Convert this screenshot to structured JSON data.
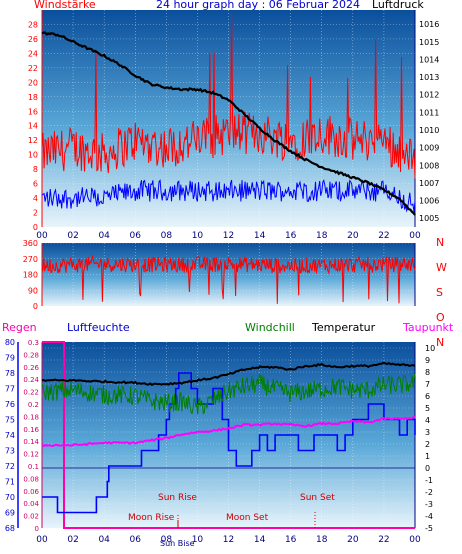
{
  "header": {
    "left_label": "Windstärke",
    "title": "24 hour graph day : 06 Februar 2024",
    "right_label": "Luftdruck"
  },
  "lower_header": {
    "regen": "Regen",
    "luftfeuchte": "Luftfeuchte",
    "windchill": "Windchill",
    "temperatur": "Temperatur",
    "taupunkt": "Taupunkt"
  },
  "annotations": {
    "sun_rise": "Sun Rise",
    "sun_set": "Sun Set",
    "moon_rise": "Moon Rise",
    "moon_set": "Moon Set",
    "sun_rise_marker": "Sun Bise"
  },
  "colors": {
    "wind_gust": "#ff0000",
    "wind_avg": "#0000ff",
    "pressure": "#000000",
    "direction": "#ff0000",
    "humidity": "#0000ff",
    "windchill": "#008000",
    "temperature": "#000000",
    "dewpoint": "#ff00ff",
    "rain": "#ff00aa",
    "left_axis": "#ff0000",
    "right_axis": "#000080",
    "header_blue": "#0000cc"
  },
  "chart_data": [
    {
      "type": "line",
      "title": "24 hour graph day : 06 Februar 2024",
      "x_ticks": [
        "00",
        "02",
        "04",
        "06",
        "08",
        "10",
        "12",
        "14",
        "16",
        "18",
        "20",
        "22",
        "00"
      ],
      "x_range_hours": [
        0,
        24
      ],
      "left_axis": {
        "label": "Windstärke",
        "ticks": [
          0,
          2,
          4,
          6,
          8,
          10,
          12,
          14,
          16,
          18,
          20,
          22,
          24,
          26,
          28
        ],
        "range": [
          0,
          30
        ]
      },
      "right_axis": {
        "label": "Luftdruck",
        "ticks": [
          1005,
          1006,
          1007,
          1008,
          1009,
          1010,
          1011,
          1012,
          1013,
          1014,
          1015,
          1016
        ],
        "range": [
          1004.5,
          1016.8
        ]
      },
      "series": [
        {
          "name": "Luftdruck",
          "axis": "right",
          "x": [
            0,
            1,
            2,
            3,
            4,
            5,
            6,
            7,
            8,
            9,
            10,
            11,
            12,
            13,
            14,
            15,
            16,
            17,
            18,
            19,
            20,
            21,
            22,
            23,
            24
          ],
          "values": [
            1015.5,
            1015.4,
            1015.0,
            1014.6,
            1014.2,
            1013.7,
            1013.1,
            1012.6,
            1012.4,
            1012.3,
            1012.3,
            1012.1,
            1011.7,
            1010.9,
            1010.1,
            1009.4,
            1008.8,
            1008.3,
            1007.9,
            1007.6,
            1007.3,
            1007.0,
            1006.6,
            1006.1,
            1005.2
          ]
        },
        {
          "name": "Böen",
          "axis": "left",
          "x": [
            0,
            2,
            4,
            6,
            8,
            10,
            12,
            14,
            16,
            18,
            20,
            22,
            24
          ],
          "values": [
            10,
            11,
            10,
            12,
            11,
            12,
            13,
            13,
            12,
            13,
            12,
            12,
            9
          ]
        },
        {
          "name": "Mittel",
          "axis": "left",
          "x": [
            0,
            2,
            4,
            6,
            8,
            10,
            12,
            14,
            16,
            18,
            20,
            22,
            24
          ],
          "values": [
            4,
            4,
            4,
            5,
            5,
            5,
            5,
            5,
            5,
            5,
            5,
            5,
            3
          ]
        }
      ]
    },
    {
      "type": "line",
      "title": "",
      "x_range_hours": [
        0,
        24
      ],
      "left_axis": {
        "ticks": [
          0,
          90,
          180,
          270,
          360
        ],
        "range": [
          0,
          360
        ]
      },
      "right_labels": [
        "N",
        "W",
        "S",
        "O",
        "N"
      ],
      "series": [
        {
          "name": "Windrichtung",
          "x": [
            0,
            4,
            8,
            12,
            16,
            20,
            24
          ],
          "values": [
            230,
            240,
            235,
            240,
            230,
            235,
            240
          ]
        }
      ]
    },
    {
      "type": "line",
      "title": "",
      "x_ticks": [
        "00",
        "02",
        "04",
        "06",
        "08",
        "10",
        "12",
        "14",
        "16",
        "18",
        "20",
        "22",
        "00"
      ],
      "x_range_hours": [
        0,
        24
      ],
      "humidity_axis": {
        "label": "Luftfeuchte",
        "ticks": [
          68,
          69,
          70,
          71,
          72,
          73,
          74,
          75,
          76,
          77,
          78,
          79,
          80
        ],
        "range": [
          68,
          80
        ]
      },
      "rain_axis": {
        "label": "Regen",
        "ticks": [
          0,
          0.02,
          0.04,
          0.06,
          0.08,
          0.1,
          0.12,
          0.14,
          0.16,
          0.18,
          0.2,
          0.22,
          0.24,
          0.26,
          0.28,
          0.3
        ],
        "range": [
          0,
          0.3
        ]
      },
      "temperature_axis": {
        "label": "Temperatur",
        "ticks": [
          -5,
          -4,
          -3,
          -2,
          -1,
          0,
          1,
          2,
          3,
          4,
          5,
          6,
          7,
          8,
          9,
          10
        ],
        "range": [
          -5,
          10.5
        ]
      },
      "series": [
        {
          "name": "Temperatur",
          "axis": "temperature",
          "x": [
            0,
            2,
            4,
            6,
            7,
            8,
            9,
            10,
            11,
            12,
            13,
            14,
            15,
            16,
            17,
            18,
            19,
            20,
            21,
            22,
            23,
            24
          ],
          "values": [
            7.3,
            7.3,
            7.2,
            7.1,
            7.0,
            7.0,
            7.1,
            7.3,
            7.5,
            7.8,
            8.2,
            8.4,
            8.4,
            8.2,
            8.5,
            8.6,
            8.4,
            8.5,
            8.5,
            8.7,
            8.6,
            8.5
          ]
        },
        {
          "name": "Windchill",
          "axis": "temperature",
          "x": [
            0,
            2,
            4,
            6,
            7,
            8,
            9,
            10,
            11,
            12,
            13,
            14,
            15,
            16,
            17,
            18,
            19,
            20,
            21,
            22,
            23,
            24
          ],
          "values": [
            6.3,
            6.5,
            6.1,
            6.0,
            5.6,
            5.4,
            5.5,
            5.0,
            5.6,
            6.4,
            6.8,
            7.0,
            6.6,
            6.2,
            6.4,
            6.6,
            6.8,
            6.5,
            6.5,
            6.9,
            6.9,
            7.1
          ]
        },
        {
          "name": "Taupunkt",
          "axis": "temperature",
          "x": [
            0,
            2,
            4,
            6,
            7,
            8,
            9,
            10,
            11,
            12,
            13,
            14,
            15,
            16,
            17,
            18,
            19,
            20,
            21,
            22,
            23,
            24
          ],
          "values": [
            1.9,
            1.9,
            2.1,
            2.1,
            2.3,
            2.5,
            2.8,
            3.0,
            3.1,
            3.3,
            3.6,
            3.6,
            3.7,
            3.6,
            3.5,
            3.7,
            3.7,
            3.9,
            3.8,
            4.1,
            4.1,
            4.2
          ]
        },
        {
          "name": "Luftfeuchte",
          "axis": "humidity",
          "x": [
            0,
            0.9,
            1.0,
            3.4,
            3.5,
            4.2,
            4.3,
            5.2,
            6.3,
            6.4,
            7.3,
            7.5,
            8.0,
            8.2,
            8.6,
            8.8,
            9.2,
            9.6,
            10.0,
            10.3,
            10.7,
            11.0,
            11.6,
            12.0,
            12.5,
            13.0,
            13.5,
            14.0,
            14.5,
            15.0,
            15.5,
            16.0,
            16.5,
            17.0,
            17.5,
            18.0,
            18.5,
            19.0,
            19.5,
            20.0,
            20.5,
            21.0,
            21.5,
            22.0,
            22.5,
            23.0,
            23.5,
            24.0
          ],
          "values": [
            70,
            70,
            69,
            69,
            70,
            71,
            72,
            72,
            72,
            73,
            73,
            74,
            75,
            76,
            77,
            78,
            78,
            77,
            76,
            76,
            76,
            77,
            75,
            73,
            72,
            72,
            73,
            74,
            73,
            74,
            74,
            74,
            73,
            73,
            74,
            74,
            74,
            73,
            74,
            75,
            75,
            76,
            76,
            75,
            75,
            74,
            75,
            74
          ]
        },
        {
          "name": "Regen",
          "axis": "rain",
          "x": [
            0,
            24
          ],
          "values": [
            0,
            0
          ]
        }
      ]
    }
  ]
}
